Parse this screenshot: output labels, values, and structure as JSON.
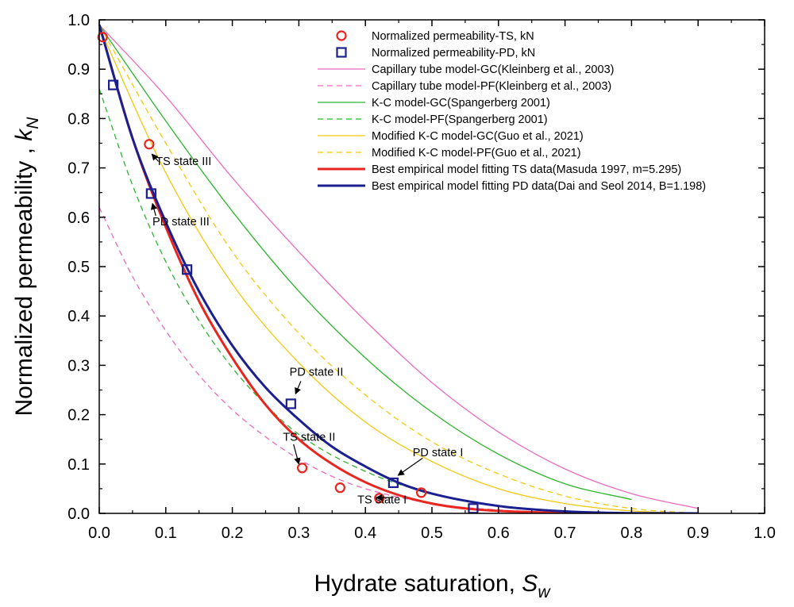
{
  "chart_data": {
    "type": "line",
    "xlabel": "Hydrate saturation, ",
    "xlabel_sym": "S",
    "xlabel_sub": "w",
    "ylabel": "Normalized permeability , ",
    "ylabel_sym": "k",
    "ylabel_sub": "N",
    "xlim": [
      0.0,
      1.0
    ],
    "ylim": [
      0.0,
      1.0
    ],
    "x_ticks": [
      "0.0",
      "0.1",
      "0.2",
      "0.3",
      "0.4",
      "0.5",
      "0.6",
      "0.7",
      "0.8",
      "0.9",
      "1.0"
    ],
    "y_ticks": [
      "0.0",
      "0.1",
      "0.2",
      "0.3",
      "0.4",
      "0.5",
      "0.6",
      "0.7",
      "0.8",
      "0.9",
      "1.0"
    ],
    "legend_position": "top-right",
    "points": [
      {
        "name": "Normalized permeability-TS, kN",
        "marker": "circle",
        "color": "#e8261f",
        "x": [
          0.005,
          0.075,
          0.305,
          0.362,
          0.421,
          0.484
        ],
        "y": [
          0.965,
          0.748,
          0.092,
          0.052,
          0.031,
          0.042
        ]
      },
      {
        "name": "Normalized permeability-PD, kN",
        "marker": "square",
        "color": "#1b1f8f",
        "x": [
          0.021,
          0.078,
          0.132,
          0.288,
          0.442,
          0.562
        ],
        "y": [
          0.868,
          0.648,
          0.494,
          0.222,
          0.062,
          0.01
        ]
      }
    ],
    "series": [
      {
        "name": "Capillary tube model-GC(Kleinberg et al., 2003)",
        "color": "#ec6bbd",
        "dash": "solid",
        "width": 1.3,
        "x": [
          0,
          0.1,
          0.2,
          0.3,
          0.4,
          0.5,
          0.6,
          0.7,
          0.8,
          0.9
        ],
        "y": [
          0.99,
          0.845,
          0.68,
          0.53,
          0.39,
          0.265,
          0.165,
          0.09,
          0.04,
          0.01
        ]
      },
      {
        "name": "Capillary tube model-PF(Kleinberg et al., 2003)",
        "color": "#ec6bbd",
        "dash": "dashed",
        "width": 1.3,
        "x": [
          0,
          0.05,
          0.1,
          0.15,
          0.2,
          0.25,
          0.3,
          0.35,
          0.4,
          0.5,
          0.6,
          0.7,
          0.8,
          0.9
        ],
        "y": [
          0.62,
          0.48,
          0.37,
          0.28,
          0.21,
          0.155,
          0.11,
          0.075,
          0.05,
          0.02,
          0.007,
          0.002,
          0.0005,
          0.0
        ]
      },
      {
        "name": "K-C model-GC(Spangerberg 2001)",
        "color": "#2cb52c",
        "dash": "solid",
        "width": 1.3,
        "x": [
          0,
          0.1,
          0.2,
          0.3,
          0.4,
          0.5,
          0.6,
          0.7,
          0.8
        ],
        "y": [
          0.99,
          0.795,
          0.612,
          0.45,
          0.315,
          0.205,
          0.12,
          0.06,
          0.028
        ]
      },
      {
        "name": "K-C model-PF(Spangerberg 2001)",
        "color": "#2cb52c",
        "dash": "dashed",
        "width": 1.3,
        "x": [
          0,
          0.05,
          0.1,
          0.15,
          0.2,
          0.25,
          0.3,
          0.4,
          0.5,
          0.6,
          0.7,
          0.8
        ],
        "y": [
          0.86,
          0.665,
          0.51,
          0.39,
          0.295,
          0.22,
          0.16,
          0.085,
          0.04,
          0.016,
          0.005,
          0.0
        ]
      },
      {
        "name": "Modified K-C model-GC(Guo et al., 2021)",
        "color": "#f2c80f",
        "dash": "solid",
        "width": 1.3,
        "x": [
          0,
          0.1,
          0.2,
          0.3,
          0.4,
          0.5,
          0.6,
          0.7,
          0.8,
          0.9
        ],
        "y": [
          0.985,
          0.69,
          0.465,
          0.305,
          0.185,
          0.105,
          0.05,
          0.02,
          0.005,
          0.0
        ]
      },
      {
        "name": "Modified K-C model-PF(Guo et al., 2021)",
        "color": "#f2c80f",
        "dash": "dashed",
        "width": 1.3,
        "x": [
          0,
          0.1,
          0.2,
          0.3,
          0.4,
          0.5,
          0.6,
          0.7,
          0.8,
          0.9
        ],
        "y": [
          0.99,
          0.75,
          0.53,
          0.365,
          0.24,
          0.145,
          0.08,
          0.035,
          0.01,
          0.0
        ]
      },
      {
        "name": "Best empirical model fitting TS data(Masuda 1997, m=5.295)",
        "color": "#e8261f",
        "dash": "solid",
        "width": 3,
        "x": [
          0,
          0.05,
          0.1,
          0.15,
          0.2,
          0.25,
          0.3,
          0.35,
          0.4,
          0.45,
          0.5,
          0.55,
          0.6,
          0.7,
          0.8,
          0.9
        ],
        "y": [
          0.99,
          0.76,
          0.58,
          0.43,
          0.315,
          0.22,
          0.15,
          0.1,
          0.063,
          0.037,
          0.02,
          0.01,
          0.005,
          0.001,
          0.0,
          0.0
        ]
      },
      {
        "name": "Best empirical model fitting PD data(Dai and Seol 2014, B=1.198)",
        "color": "#1b1f8f",
        "dash": "solid",
        "width": 3,
        "x": [
          0,
          0.05,
          0.1,
          0.15,
          0.2,
          0.25,
          0.3,
          0.35,
          0.4,
          0.45,
          0.5,
          0.6,
          0.7,
          0.8,
          0.9
        ],
        "y": [
          0.99,
          0.76,
          0.59,
          0.45,
          0.34,
          0.255,
          0.19,
          0.135,
          0.095,
          0.062,
          0.04,
          0.015,
          0.004,
          0.0005,
          0.0
        ]
      }
    ],
    "annotations": [
      {
        "text": "TS state III",
        "x": 0.085,
        "y": 0.706,
        "arrow_to_x": 0.079,
        "arrow_to_y": 0.728
      },
      {
        "text": "PD state III",
        "x": 0.08,
        "y": 0.584,
        "arrow_to_x": 0.08,
        "arrow_to_y": 0.628
      },
      {
        "text": "PD state II",
        "x": 0.286,
        "y": 0.279,
        "arrow_to_x": 0.295,
        "arrow_to_y": 0.242
      },
      {
        "text": "TS state II",
        "x": 0.276,
        "y": 0.147,
        "arrow_to_x": 0.3,
        "arrow_to_y": 0.1
      },
      {
        "text": "PD state I",
        "x": 0.471,
        "y": 0.116,
        "arrow_to_x": 0.449,
        "arrow_to_y": 0.077
      },
      {
        "text": "TS state I",
        "x": 0.388,
        "y": 0.02,
        "arrow_to_x": 0.416,
        "arrow_to_y": 0.032
      }
    ]
  }
}
